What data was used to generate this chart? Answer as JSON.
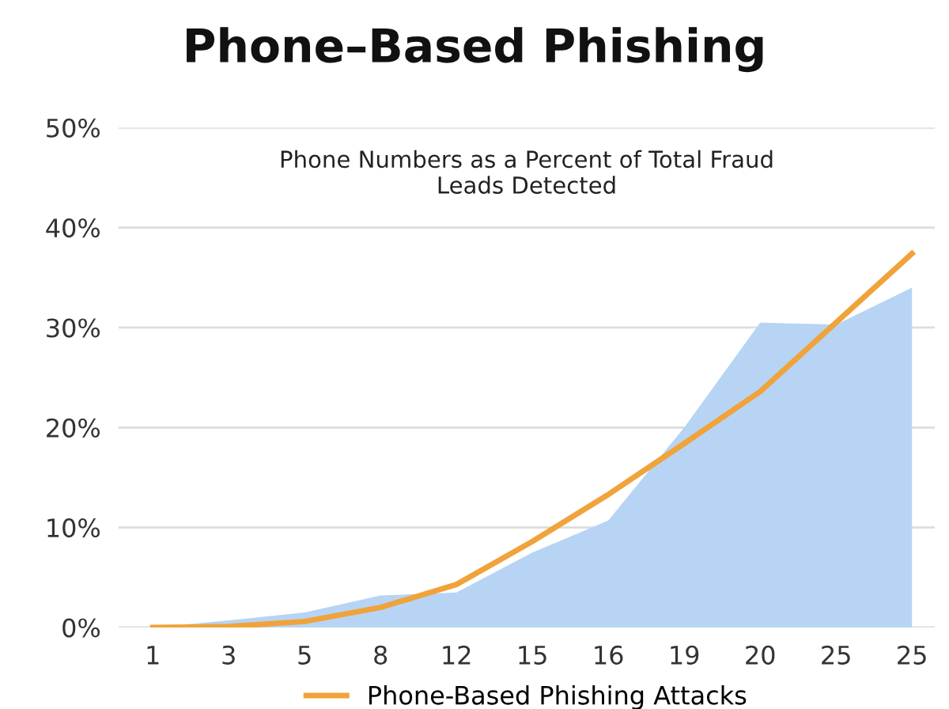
{
  "chart_data": {
    "type": "area",
    "title": "Phone–Based Phishing",
    "subtitle": "Phone Numbers as a Percent of Total Fraud\nLeads Detected",
    "categories": [
      "1",
      "3",
      "5",
      "8",
      "12",
      "15",
      "16",
      "19",
      "20",
      "25",
      "25"
    ],
    "series": [
      {
        "color": "#b7d4f5",
        "values": [
          0,
          0.7,
          1.5,
          3.2,
          3.5,
          7.5,
          10.7,
          20,
          30.5,
          30.3,
          34
        ]
      },
      {
        "type": "line",
        "name": "Phone-Based Phishing Attacks",
        "color": "#f0a33a",
        "values": [
          0,
          0.1,
          0.6,
          2,
          4.3,
          8.6,
          13.3,
          18.4,
          23.6,
          30.5,
          37.4
        ]
      }
    ],
    "ylim": [
      0,
      50
    ],
    "yticks": [
      {
        "value": 0,
        "label": "0%"
      },
      {
        "value": 10,
        "label": "10%"
      },
      {
        "value": 20,
        "label": "20%"
      },
      {
        "value": 30,
        "label": "30%"
      },
      {
        "value": 40,
        "label": "40%"
      },
      {
        "value": 50,
        "label": "50%"
      }
    ],
    "grid": "y",
    "legend": "bottom",
    "line_style": "solid",
    "marker": "none"
  }
}
